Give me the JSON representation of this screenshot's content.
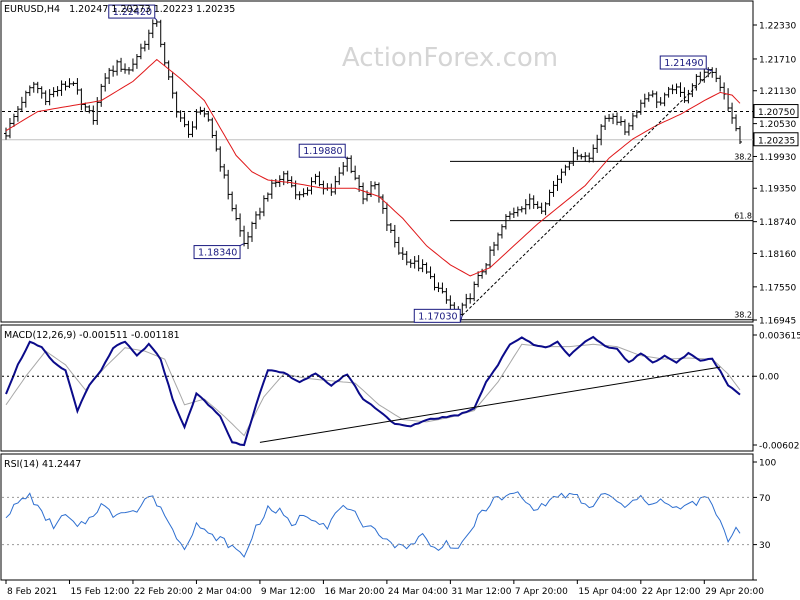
{
  "header": {
    "symbol": "EURUSD,H4",
    "ohlc": "1.20247 1.20273 1.20223 1.20235"
  },
  "watermark": "ActionForex.com",
  "price_panel": {
    "y_ticks": [
      "1.22330",
      "1.21710",
      "1.21130",
      "1.20530",
      "1.19930",
      "1.19350",
      "1.18740",
      "1.18160",
      "1.17550",
      "1.16945"
    ],
    "y_tick_values": [
      1.2233,
      1.2171,
      1.2113,
      1.2053,
      1.1993,
      1.1935,
      1.1874,
      1.1816,
      1.1755,
      1.16945
    ],
    "level_line": {
      "value": 1.2075,
      "label": "1.20750"
    },
    "current_price": {
      "value": 1.20235,
      "label": "1.20235"
    },
    "fib_levels": [
      {
        "label": "38.2",
        "value": 1.1984
      },
      {
        "label": "61.8",
        "value": 1.1876
      },
      {
        "label": "38.2",
        "value": 1.1695
      }
    ],
    "annotations": [
      {
        "label": "1.22420",
        "x": 38,
        "value": 1.2242
      },
      {
        "label": "1.18340",
        "x": 60,
        "value": 1.1834
      },
      {
        "label": "1.19880",
        "x": 86,
        "value": 1.1988
      },
      {
        "label": "1.17030",
        "x": 115,
        "value": 1.1703
      },
      {
        "label": "1.21490",
        "x": 178,
        "value": 1.2149
      }
    ]
  },
  "macd_panel": {
    "label": "MACD(12,26,9) -0.001511 -0.001181",
    "y_ticks": [
      "0.003615",
      "0.00",
      "-0.006026"
    ],
    "y_tick_values": [
      0.003615,
      0.0,
      -0.006026
    ]
  },
  "rsi_panel": {
    "label": "RSI(14) 41.2447",
    "y_ticks": [
      "100",
      "70",
      "30",
      "0"
    ],
    "y_tick_values": [
      100,
      70,
      30,
      0
    ]
  },
  "x_axis": {
    "labels": [
      "8 Feb 2021",
      "15 Feb 12:00",
      "22 Feb 20:00",
      "2 Mar 04:00",
      "9 Mar 12:00",
      "16 Mar 20:00",
      "24 Mar 04:00",
      "31 Mar 12:00",
      "7 Apr 20:00",
      "15 Apr 04:00",
      "22 Apr 12:00",
      "29 Apr 20:00"
    ],
    "positions": [
      0,
      16,
      32,
      48,
      64,
      80,
      96,
      112,
      128,
      144,
      160,
      176
    ]
  },
  "chart_data": {
    "type": "line",
    "title": "EURUSD,H4",
    "bar_count": 186,
    "price_keypoints": [
      [
        0,
        1.2035
      ],
      [
        4,
        1.2095
      ],
      [
        7,
        1.2125
      ],
      [
        10,
        1.21
      ],
      [
        14,
        1.212
      ],
      [
        17,
        1.213
      ],
      [
        19,
        1.2085
      ],
      [
        22,
        1.2065
      ],
      [
        25,
        1.214
      ],
      [
        28,
        1.216
      ],
      [
        31,
        1.215
      ],
      [
        34,
        1.219
      ],
      [
        38,
        1.2242
      ],
      [
        40,
        1.216
      ],
      [
        43,
        1.208
      ],
      [
        46,
        1.203
      ],
      [
        48,
        1.2075
      ],
      [
        51,
        1.206
      ],
      [
        54,
        1.198
      ],
      [
        57,
        1.19
      ],
      [
        60,
        1.1834
      ],
      [
        63,
        1.188
      ],
      [
        66,
        1.193
      ],
      [
        70,
        1.196
      ],
      [
        74,
        1.192
      ],
      [
        78,
        1.195
      ],
      [
        82,
        1.193
      ],
      [
        86,
        1.1988
      ],
      [
        90,
        1.192
      ],
      [
        93,
        1.194
      ],
      [
        96,
        1.187
      ],
      [
        99,
        1.182
      ],
      [
        102,
        1.18
      ],
      [
        105,
        1.179
      ],
      [
        108,
        1.176
      ],
      [
        111,
        1.173
      ],
      [
        114,
        1.1703
      ],
      [
        117,
        1.174
      ],
      [
        120,
        1.1785
      ],
      [
        123,
        1.183
      ],
      [
        126,
        1.188
      ],
      [
        129,
        1.19
      ],
      [
        132,
        1.191
      ],
      [
        135,
        1.19
      ],
      [
        138,
        1.194
      ],
      [
        141,
        1.198
      ],
      [
        144,
        1.2
      ],
      [
        147,
        1.199
      ],
      [
        150,
        1.205
      ],
      [
        153,
        1.207
      ],
      [
        156,
        1.204
      ],
      [
        159,
        1.208
      ],
      [
        162,
        1.211
      ],
      [
        165,
        1.209
      ],
      [
        168,
        1.212
      ],
      [
        171,
        1.21
      ],
      [
        174,
        1.2135
      ],
      [
        178,
        1.2149
      ],
      [
        181,
        1.211
      ],
      [
        183,
        1.206
      ],
      [
        185,
        1.2023
      ]
    ],
    "ma_keypoints": [
      [
        0,
        1.204
      ],
      [
        8,
        1.2075
      ],
      [
        16,
        1.2085
      ],
      [
        24,
        1.2095
      ],
      [
        32,
        1.213
      ],
      [
        38,
        1.217
      ],
      [
        44,
        1.2135
      ],
      [
        50,
        1.2095
      ],
      [
        54,
        1.2045
      ],
      [
        58,
        1.1995
      ],
      [
        62,
        1.1965
      ],
      [
        66,
        1.195
      ],
      [
        72,
        1.1945
      ],
      [
        80,
        1.1935
      ],
      [
        88,
        1.1935
      ],
      [
        94,
        1.192
      ],
      [
        100,
        1.188
      ],
      [
        106,
        1.183
      ],
      [
        112,
        1.1795
      ],
      [
        117,
        1.1775
      ],
      [
        122,
        1.179
      ],
      [
        128,
        1.183
      ],
      [
        134,
        1.187
      ],
      [
        140,
        1.1905
      ],
      [
        146,
        1.194
      ],
      [
        152,
        1.199
      ],
      [
        158,
        1.2025
      ],
      [
        164,
        1.205
      ],
      [
        170,
        1.207
      ],
      [
        176,
        1.2095
      ],
      [
        180,
        1.211
      ],
      [
        183,
        1.2105
      ],
      [
        185,
        1.209
      ]
    ],
    "macd_keypoints": [
      [
        0,
        -0.0015
      ],
      [
        3,
        0.001
      ],
      [
        6,
        0.003
      ],
      [
        9,
        0.0025
      ],
      [
        12,
        0.0012
      ],
      [
        15,
        0.0005
      ],
      [
        18,
        -0.003
      ],
      [
        21,
        -0.0008
      ],
      [
        24,
        0.0005
      ],
      [
        27,
        0.0025
      ],
      [
        30,
        0.003
      ],
      [
        33,
        0.0018
      ],
      [
        36,
        0.0028
      ],
      [
        39,
        0.0015
      ],
      [
        42,
        -0.002
      ],
      [
        45,
        -0.0045
      ],
      [
        48,
        -0.0015
      ],
      [
        51,
        -0.0025
      ],
      [
        54,
        -0.0035
      ],
      [
        57,
        -0.0058
      ],
      [
        60,
        -0.006
      ],
      [
        63,
        -0.0025
      ],
      [
        66,
        0.0005
      ],
      [
        70,
        0.0003
      ],
      [
        74,
        -0.0005
      ],
      [
        78,
        0.0002
      ],
      [
        82,
        -0.0008
      ],
      [
        86,
        0.0002
      ],
      [
        90,
        -0.002
      ],
      [
        94,
        -0.003
      ],
      [
        98,
        -0.0042
      ],
      [
        102,
        -0.0044
      ],
      [
        106,
        -0.0038
      ],
      [
        110,
        -0.0036
      ],
      [
        114,
        -0.0034
      ],
      [
        118,
        -0.0028
      ],
      [
        121,
        -0.0005
      ],
      [
        124,
        0.001
      ],
      [
        127,
        0.0028
      ],
      [
        130,
        0.0034
      ],
      [
        133,
        0.0028
      ],
      [
        136,
        0.0025
      ],
      [
        139,
        0.003
      ],
      [
        142,
        0.0018
      ],
      [
        145,
        0.0028
      ],
      [
        148,
        0.0034
      ],
      [
        151,
        0.0026
      ],
      [
        154,
        0.0024
      ],
      [
        157,
        0.0012
      ],
      [
        160,
        0.002
      ],
      [
        163,
        0.0012
      ],
      [
        166,
        0.0018
      ],
      [
        169,
        0.0012
      ],
      [
        172,
        0.002
      ],
      [
        175,
        0.0014
      ],
      [
        178,
        0.0015
      ],
      [
        180,
        0.0005
      ],
      [
        182,
        -0.0008
      ],
      [
        184,
        -0.0013
      ],
      [
        185,
        -0.0016
      ]
    ],
    "signal_keypoints": [
      [
        0,
        -0.0025
      ],
      [
        5,
        0.0
      ],
      [
        10,
        0.0022
      ],
      [
        15,
        0.001
      ],
      [
        20,
        -0.0012
      ],
      [
        25,
        0.0008
      ],
      [
        30,
        0.0025
      ],
      [
        35,
        0.0022
      ],
      [
        40,
        0.0015
      ],
      [
        45,
        -0.0025
      ],
      [
        50,
        -0.002
      ],
      [
        55,
        -0.0035
      ],
      [
        60,
        -0.0052
      ],
      [
        65,
        -0.0018
      ],
      [
        70,
        0.0002
      ],
      [
        76,
        -0.0002
      ],
      [
        82,
        -0.0004
      ],
      [
        88,
        -0.0006
      ],
      [
        94,
        -0.0025
      ],
      [
        100,
        -0.0038
      ],
      [
        106,
        -0.004
      ],
      [
        112,
        -0.0036
      ],
      [
        118,
        -0.003
      ],
      [
        124,
        -0.0005
      ],
      [
        130,
        0.0028
      ],
      [
        136,
        0.0026
      ],
      [
        142,
        0.0026
      ],
      [
        148,
        0.0028
      ],
      [
        154,
        0.0026
      ],
      [
        160,
        0.0018
      ],
      [
        166,
        0.0015
      ],
      [
        172,
        0.0016
      ],
      [
        178,
        0.0015
      ],
      [
        182,
        0.0002
      ],
      [
        185,
        -0.0012
      ]
    ],
    "macd_trendline": [
      [
        64,
        -0.0058
      ],
      [
        180,
        0.0008
      ]
    ],
    "rsi_keypoints": [
      [
        0,
        55
      ],
      [
        3,
        65
      ],
      [
        6,
        72
      ],
      [
        9,
        56
      ],
      [
        12,
        46
      ],
      [
        15,
        55
      ],
      [
        18,
        44
      ],
      [
        21,
        52
      ],
      [
        24,
        64
      ],
      [
        27,
        55
      ],
      [
        30,
        60
      ],
      [
        33,
        58
      ],
      [
        36,
        72
      ],
      [
        39,
        62
      ],
      [
        42,
        42
      ],
      [
        45,
        28
      ],
      [
        48,
        48
      ],
      [
        51,
        38
      ],
      [
        54,
        35
      ],
      [
        57,
        28
      ],
      [
        60,
        20
      ],
      [
        63,
        45
      ],
      [
        66,
        60
      ],
      [
        69,
        58
      ],
      [
        72,
        46
      ],
      [
        75,
        56
      ],
      [
        78,
        52
      ],
      [
        81,
        46
      ],
      [
        84,
        60
      ],
      [
        87,
        62
      ],
      [
        90,
        42
      ],
      [
        93,
        44
      ],
      [
        96,
        34
      ],
      [
        99,
        28
      ],
      [
        102,
        30
      ],
      [
        105,
        38
      ],
      [
        108,
        26
      ],
      [
        111,
        32
      ],
      [
        114,
        24
      ],
      [
        117,
        42
      ],
      [
        120,
        58
      ],
      [
        123,
        68
      ],
      [
        126,
        70
      ],
      [
        129,
        74
      ],
      [
        132,
        62
      ],
      [
        135,
        62
      ],
      [
        138,
        70
      ],
      [
        141,
        72
      ],
      [
        144,
        70
      ],
      [
        147,
        60
      ],
      [
        150,
        72
      ],
      [
        153,
        70
      ],
      [
        156,
        60
      ],
      [
        159,
        70
      ],
      [
        162,
        66
      ],
      [
        165,
        68
      ],
      [
        168,
        60
      ],
      [
        171,
        62
      ],
      [
        174,
        66
      ],
      [
        177,
        70
      ],
      [
        180,
        48
      ],
      [
        182,
        34
      ],
      [
        184,
        44
      ],
      [
        185,
        41
      ]
    ],
    "rsi_levels": [
      70,
      30
    ]
  }
}
